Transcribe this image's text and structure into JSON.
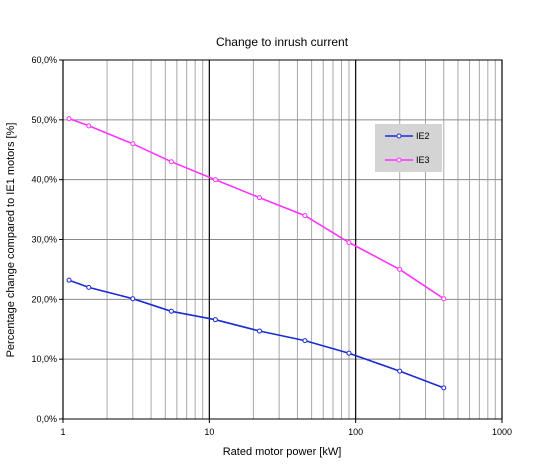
{
  "chart_data": {
    "type": "line",
    "title": "Change to inrush current",
    "xlabel": "Rated motor power [kW]",
    "ylabel": "Percentage change compared to IE1 motors [%]",
    "x_scale": "log",
    "xlim": [
      1,
      1000
    ],
    "ylim": [
      0,
      60
    ],
    "x_ticks": [
      1,
      10,
      100,
      1000
    ],
    "x_tick_labels": [
      "1",
      "10",
      "100",
      "1000"
    ],
    "y_ticks": [
      0,
      10,
      20,
      30,
      40,
      50,
      60
    ],
    "y_tick_labels": [
      "0,0%",
      "10,0%",
      "20,0%",
      "30,0%",
      "40,0%",
      "50,0%",
      "60,0%"
    ],
    "grid": true,
    "legend_position": "top-right",
    "series": [
      {
        "name": "IE2",
        "color": "#1a2bd6",
        "x": [
          1.1,
          1.5,
          3,
          5.5,
          11,
          22,
          45,
          90,
          200,
          400
        ],
        "y": [
          23.2,
          22.0,
          20.1,
          18.0,
          16.6,
          14.7,
          13.1,
          11.0,
          8.0,
          5.2
        ]
      },
      {
        "name": "IE3",
        "color": "#ff33ff",
        "x": [
          1.1,
          1.5,
          3,
          5.5,
          11,
          22,
          45,
          90,
          200,
          400
        ],
        "y": [
          50.2,
          49.0,
          46.0,
          43.0,
          40.0,
          37.0,
          34.0,
          29.5,
          25.0,
          20.1
        ]
      }
    ]
  }
}
